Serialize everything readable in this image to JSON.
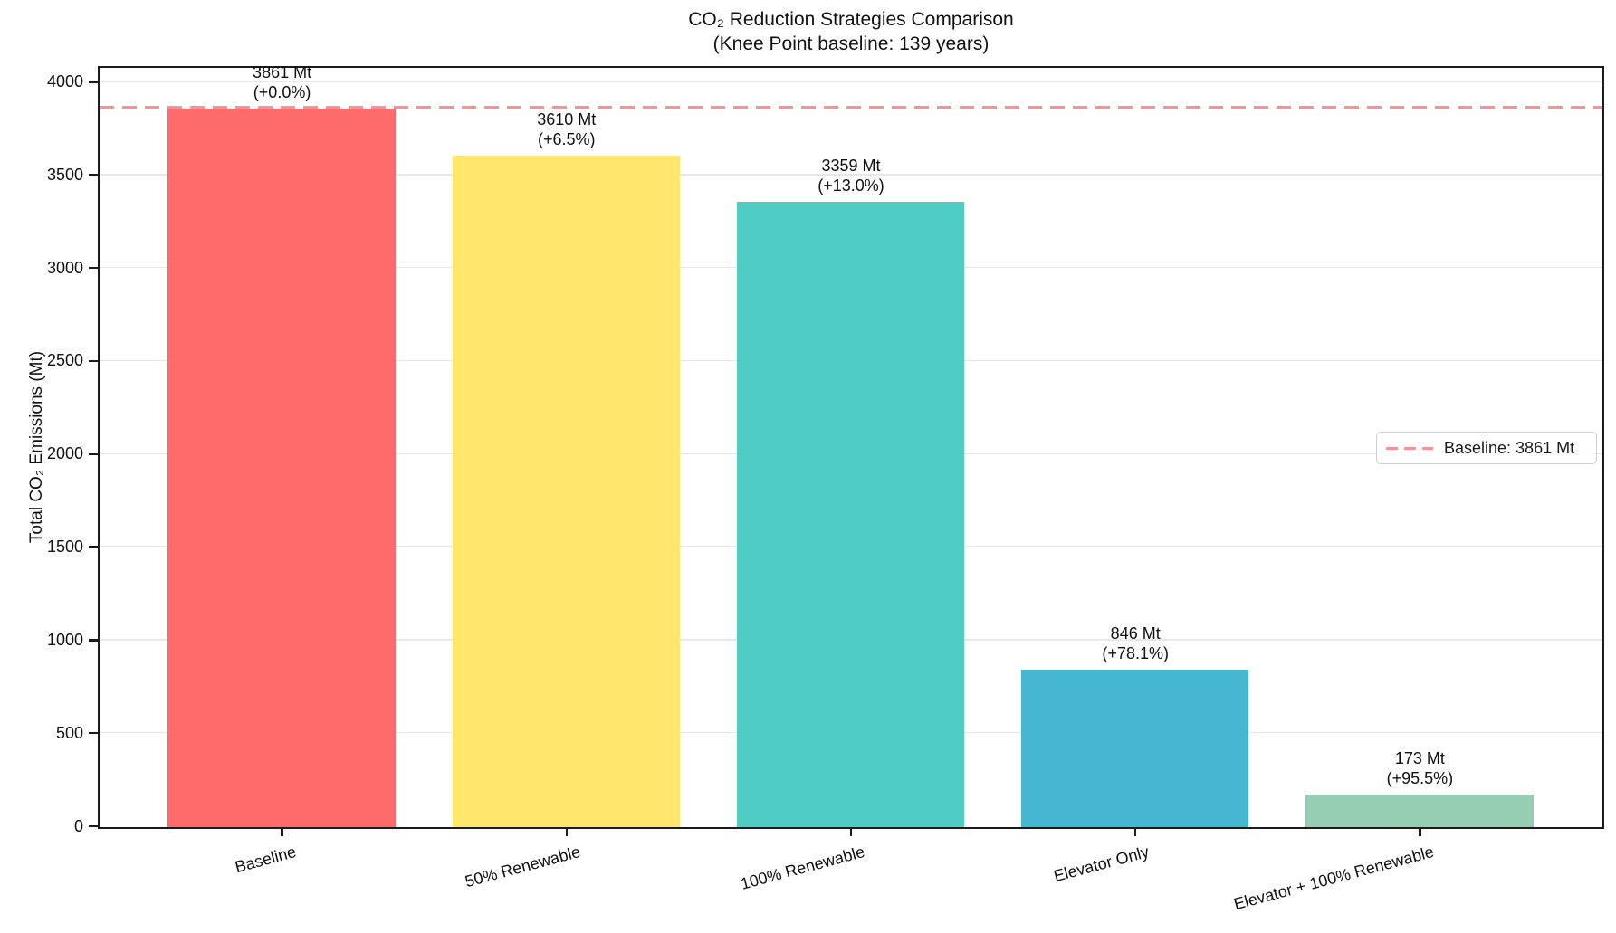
{
  "chart_data": {
    "type": "bar",
    "title_lines": [
      "CO₂ Reduction Strategies Comparison",
      "(Knee Point baseline: 139 years)"
    ],
    "ylabel": "Total CO₂ Emissions (Mt)",
    "xlabel": "",
    "categories": [
      "Baseline",
      "50% Renewable",
      "100% Renewable",
      "Elevator Only",
      "Elevator + 100% Renewable"
    ],
    "values": [
      3861,
      3610,
      3359,
      846,
      173
    ],
    "bar_labels": [
      {
        "value_text": "3861 Mt",
        "pct_text": "(+0.0%)"
      },
      {
        "value_text": "3610 Mt",
        "pct_text": "(+6.5%)"
      },
      {
        "value_text": "3359 Mt",
        "pct_text": "(+13.0%)"
      },
      {
        "value_text": "846 Mt",
        "pct_text": "(+78.1%)"
      },
      {
        "value_text": "173 Mt",
        "pct_text": "(+95.5%)"
      }
    ],
    "bar_colors": [
      "#FF6B6B",
      "#FFE66D",
      "#4ECDC4",
      "#45B7D1",
      "#96CEB4"
    ],
    "yticks": [
      0,
      500,
      1000,
      1500,
      2000,
      2500,
      3000,
      3500,
      4000
    ],
    "ylim": [
      0,
      4073
    ],
    "grid": true,
    "legend_position": "center right",
    "baseline_line": {
      "value": 3861,
      "color": "#FF6B6B",
      "style": "dashed"
    },
    "legend": {
      "label": "Baseline: 3861 Mt",
      "line_color": "#FF6B6B"
    }
  }
}
